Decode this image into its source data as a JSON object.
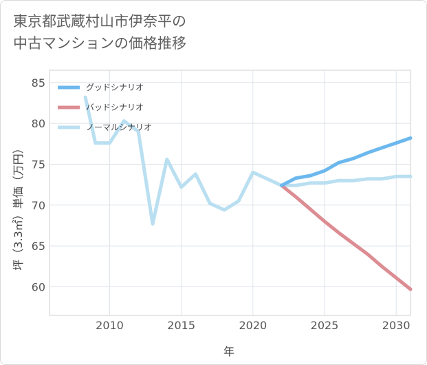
{
  "page": {
    "title_line1": "東京都武蔵村山市伊奈平の",
    "title_line2": "中古マンションの価格推移"
  },
  "chart_data": {
    "type": "line",
    "title": "東京都武蔵村山市伊奈平の中古マンションの価格推移",
    "xlabel": "年",
    "ylabel": "坪（3.3㎡）単価（万円）",
    "xlim": [
      2005.8,
      2031
    ],
    "ylim": [
      56.5,
      86.5
    ],
    "xticks": [
      2010,
      2015,
      2020,
      2025,
      2030
    ],
    "yticks": [
      60,
      65,
      70,
      75,
      80,
      85
    ],
    "grid": true,
    "legend_position": "top-left",
    "series": [
      {
        "name": "グッドシナリオ",
        "color": "#6cb8ee",
        "width": 5,
        "x": [
          2022,
          2023,
          2024,
          2025,
          2026,
          2027,
          2028,
          2029,
          2030,
          2031
        ],
        "y": [
          72.4,
          73.3,
          73.6,
          74.2,
          75.2,
          75.7,
          76.4,
          77.0,
          77.6,
          78.2
        ]
      },
      {
        "name": "バッドシナリオ",
        "color": "#dc8c93",
        "width": 5,
        "x": [
          2022,
          2023,
          2024,
          2025,
          2026,
          2027,
          2028,
          2029,
          2030,
          2031
        ],
        "y": [
          72.4,
          71.0,
          69.5,
          68.0,
          66.6,
          65.3,
          64.0,
          62.5,
          61.1,
          59.7
        ]
      },
      {
        "name": "ノーマルシナリオ",
        "color": "#b9dff1",
        "width": 5,
        "x": [
          2008.3,
          2009,
          2010,
          2011,
          2012,
          2013,
          2014,
          2015,
          2016,
          2017,
          2018,
          2019,
          2020,
          2021,
          2022,
          2023,
          2024,
          2025,
          2026,
          2027,
          2028,
          2029,
          2030,
          2031
        ],
        "y": [
          83.2,
          77.6,
          77.6,
          80.3,
          79.0,
          67.7,
          75.6,
          72.2,
          73.8,
          70.2,
          69.4,
          70.5,
          74.0,
          73.2,
          72.4,
          72.4,
          72.7,
          72.7,
          73.0,
          73.0,
          73.2,
          73.2,
          73.5,
          73.5
        ]
      }
    ]
  }
}
